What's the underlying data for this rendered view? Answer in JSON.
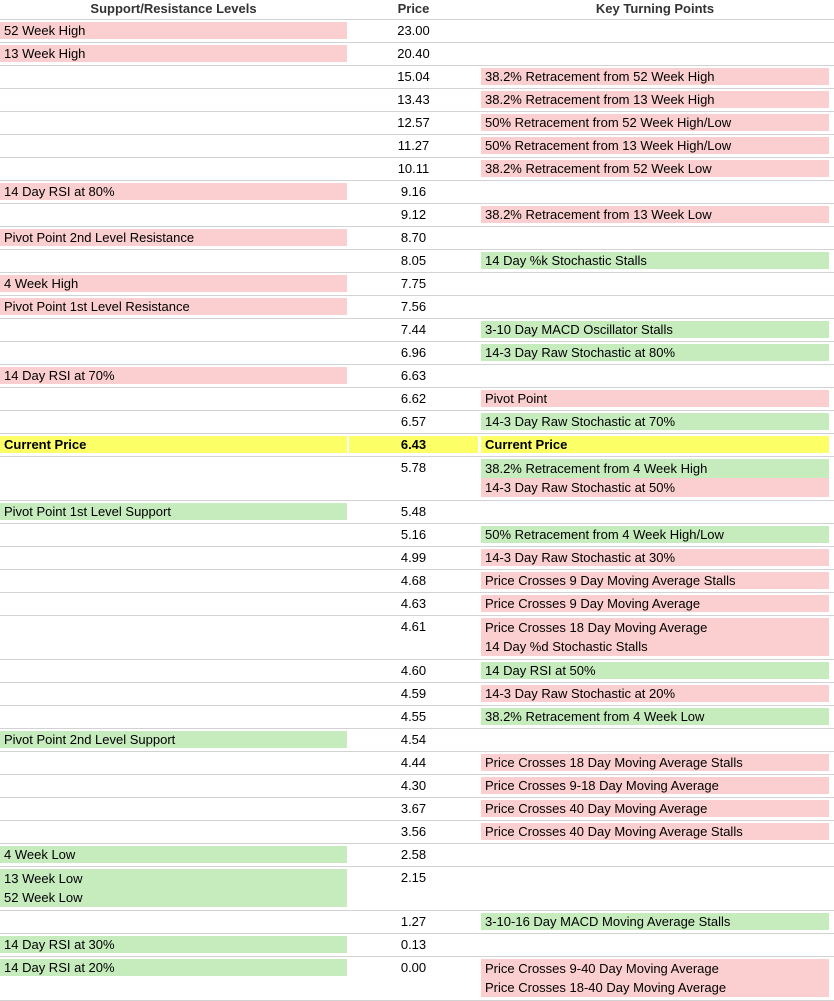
{
  "headers": {
    "levels": "Support/Resistance Levels",
    "price": "Price",
    "points": "Key Turning Points"
  },
  "colors": {
    "resistance": "#fbcfcf",
    "support": "#c6ecbe",
    "current": "#fdff66",
    "border": "#d2d2d2"
  },
  "rows": [
    {
      "level": {
        "color": "resistance",
        "lines": [
          "52 Week High"
        ]
      },
      "price": "23.00",
      "price_color": null,
      "points": [],
      "bold": false
    },
    {
      "level": {
        "color": "resistance",
        "lines": [
          "13 Week High"
        ]
      },
      "price": "20.40",
      "price_color": null,
      "points": [],
      "bold": false
    },
    {
      "level": {
        "color": null,
        "lines": []
      },
      "price": "15.04",
      "price_color": null,
      "points": [
        {
          "text": "38.2% Retracement from 52 Week High",
          "color": "resistance"
        }
      ],
      "bold": false
    },
    {
      "level": {
        "color": null,
        "lines": []
      },
      "price": "13.43",
      "price_color": null,
      "points": [
        {
          "text": "38.2% Retracement from 13 Week High",
          "color": "resistance"
        }
      ],
      "bold": false
    },
    {
      "level": {
        "color": null,
        "lines": []
      },
      "price": "12.57",
      "price_color": null,
      "points": [
        {
          "text": "50% Retracement from 52 Week High/Low",
          "color": "resistance"
        }
      ],
      "bold": false
    },
    {
      "level": {
        "color": null,
        "lines": []
      },
      "price": "11.27",
      "price_color": null,
      "points": [
        {
          "text": "50% Retracement from 13 Week High/Low",
          "color": "resistance"
        }
      ],
      "bold": false
    },
    {
      "level": {
        "color": null,
        "lines": []
      },
      "price": "10.11",
      "price_color": null,
      "points": [
        {
          "text": "38.2% Retracement from 52 Week Low",
          "color": "resistance"
        }
      ],
      "bold": false
    },
    {
      "level": {
        "color": "resistance",
        "lines": [
          "14 Day RSI at 80%"
        ]
      },
      "price": "9.16",
      "price_color": null,
      "points": [],
      "bold": false
    },
    {
      "level": {
        "color": null,
        "lines": []
      },
      "price": "9.12",
      "price_color": null,
      "points": [
        {
          "text": "38.2% Retracement from 13 Week Low",
          "color": "resistance"
        }
      ],
      "bold": false
    },
    {
      "level": {
        "color": "resistance",
        "lines": [
          "Pivot Point 2nd Level Resistance"
        ]
      },
      "price": "8.70",
      "price_color": null,
      "points": [],
      "bold": false
    },
    {
      "level": {
        "color": null,
        "lines": []
      },
      "price": "8.05",
      "price_color": null,
      "points": [
        {
          "text": "14 Day %k Stochastic Stalls",
          "color": "support"
        }
      ],
      "bold": false
    },
    {
      "level": {
        "color": "resistance",
        "lines": [
          "4 Week High"
        ]
      },
      "price": "7.75",
      "price_color": null,
      "points": [],
      "bold": false
    },
    {
      "level": {
        "color": "resistance",
        "lines": [
          "Pivot Point 1st Level Resistance"
        ]
      },
      "price": "7.56",
      "price_color": null,
      "points": [],
      "bold": false
    },
    {
      "level": {
        "color": null,
        "lines": []
      },
      "price": "7.44",
      "price_color": null,
      "points": [
        {
          "text": "3-10 Day MACD Oscillator Stalls",
          "color": "support"
        }
      ],
      "bold": false
    },
    {
      "level": {
        "color": null,
        "lines": []
      },
      "price": "6.96",
      "price_color": null,
      "points": [
        {
          "text": "14-3 Day Raw Stochastic at 80%",
          "color": "support"
        }
      ],
      "bold": false
    },
    {
      "level": {
        "color": "resistance",
        "lines": [
          "14 Day RSI at 70%"
        ]
      },
      "price": "6.63",
      "price_color": null,
      "points": [],
      "bold": false
    },
    {
      "level": {
        "color": null,
        "lines": []
      },
      "price": "6.62",
      "price_color": null,
      "points": [
        {
          "text": "Pivot Point",
          "color": "resistance"
        }
      ],
      "bold": false
    },
    {
      "level": {
        "color": null,
        "lines": []
      },
      "price": "6.57",
      "price_color": null,
      "points": [
        {
          "text": "14-3 Day Raw Stochastic at 70%",
          "color": "support"
        }
      ],
      "bold": false
    },
    {
      "level": {
        "color": "current",
        "lines": [
          "Current Price"
        ]
      },
      "price": "6.43",
      "price_color": "current",
      "points": [
        {
          "text": "Current Price",
          "color": "current"
        }
      ],
      "bold": true
    },
    {
      "level": {
        "color": null,
        "lines": []
      },
      "price": "5.78",
      "price_color": null,
      "points": [
        {
          "text": "38.2% Retracement from 4 Week High",
          "color": "support"
        },
        {
          "text": "14-3 Day Raw Stochastic at 50%",
          "color": "resistance"
        }
      ],
      "bold": false
    },
    {
      "level": {
        "color": "support",
        "lines": [
          "Pivot Point 1st Level Support"
        ]
      },
      "price": "5.48",
      "price_color": null,
      "points": [],
      "bold": false
    },
    {
      "level": {
        "color": null,
        "lines": []
      },
      "price": "5.16",
      "price_color": null,
      "points": [
        {
          "text": "50% Retracement from 4 Week High/Low",
          "color": "support"
        }
      ],
      "bold": false
    },
    {
      "level": {
        "color": null,
        "lines": []
      },
      "price": "4.99",
      "price_color": null,
      "points": [
        {
          "text": "14-3 Day Raw Stochastic at 30%",
          "color": "resistance"
        }
      ],
      "bold": false
    },
    {
      "level": {
        "color": null,
        "lines": []
      },
      "price": "4.68",
      "price_color": null,
      "points": [
        {
          "text": "Price Crosses 9 Day Moving Average Stalls",
          "color": "resistance"
        }
      ],
      "bold": false
    },
    {
      "level": {
        "color": null,
        "lines": []
      },
      "price": "4.63",
      "price_color": null,
      "points": [
        {
          "text": "Price Crosses 9 Day Moving Average",
          "color": "resistance"
        }
      ],
      "bold": false
    },
    {
      "level": {
        "color": null,
        "lines": []
      },
      "price": "4.61",
      "price_color": null,
      "points": [
        {
          "text": "Price Crosses 18 Day Moving Average",
          "color": "resistance"
        },
        {
          "text": "14 Day %d Stochastic Stalls",
          "color": "resistance"
        }
      ],
      "bold": false
    },
    {
      "level": {
        "color": null,
        "lines": []
      },
      "price": "4.60",
      "price_color": null,
      "points": [
        {
          "text": "14 Day RSI at 50%",
          "color": "support"
        }
      ],
      "bold": false
    },
    {
      "level": {
        "color": null,
        "lines": []
      },
      "price": "4.59",
      "price_color": null,
      "points": [
        {
          "text": "14-3 Day Raw Stochastic at 20%",
          "color": "resistance"
        }
      ],
      "bold": false
    },
    {
      "level": {
        "color": null,
        "lines": []
      },
      "price": "4.55",
      "price_color": null,
      "points": [
        {
          "text": "38.2% Retracement from 4 Week Low",
          "color": "support"
        }
      ],
      "bold": false
    },
    {
      "level": {
        "color": "support",
        "lines": [
          "Pivot Point 2nd Level Support"
        ]
      },
      "price": "4.54",
      "price_color": null,
      "points": [],
      "bold": false
    },
    {
      "level": {
        "color": null,
        "lines": []
      },
      "price": "4.44",
      "price_color": null,
      "points": [
        {
          "text": "Price Crosses 18 Day Moving Average Stalls",
          "color": "resistance"
        }
      ],
      "bold": false
    },
    {
      "level": {
        "color": null,
        "lines": []
      },
      "price": "4.30",
      "price_color": null,
      "points": [
        {
          "text": "Price Crosses 9-18 Day Moving Average",
          "color": "resistance"
        }
      ],
      "bold": false
    },
    {
      "level": {
        "color": null,
        "lines": []
      },
      "price": "3.67",
      "price_color": null,
      "points": [
        {
          "text": "Price Crosses 40 Day Moving Average",
          "color": "resistance"
        }
      ],
      "bold": false
    },
    {
      "level": {
        "color": null,
        "lines": []
      },
      "price": "3.56",
      "price_color": null,
      "points": [
        {
          "text": "Price Crosses 40 Day Moving Average Stalls",
          "color": "resistance"
        }
      ],
      "bold": false
    },
    {
      "level": {
        "color": "support",
        "lines": [
          "4 Week Low"
        ]
      },
      "price": "2.58",
      "price_color": null,
      "points": [],
      "bold": false
    },
    {
      "level": {
        "color": "support",
        "lines": [
          "13 Week Low",
          "52 Week Low"
        ]
      },
      "price": "2.15",
      "price_color": null,
      "points": [],
      "bold": false
    },
    {
      "level": {
        "color": null,
        "lines": []
      },
      "price": "1.27",
      "price_color": null,
      "points": [
        {
          "text": "3-10-16 Day MACD Moving Average Stalls",
          "color": "support"
        }
      ],
      "bold": false
    },
    {
      "level": {
        "color": "support",
        "lines": [
          "14 Day RSI at 30%"
        ]
      },
      "price": "0.13",
      "price_color": null,
      "points": [],
      "bold": false
    },
    {
      "level": {
        "color": "support",
        "lines": [
          "14 Day RSI at 20%"
        ]
      },
      "price": "0.00",
      "price_color": null,
      "points": [
        {
          "text": "Price Crosses 9-40 Day Moving Average",
          "color": "resistance"
        },
        {
          "text": "Price Crosses 18-40 Day Moving Average",
          "color": "resistance"
        }
      ],
      "bold": false
    }
  ]
}
